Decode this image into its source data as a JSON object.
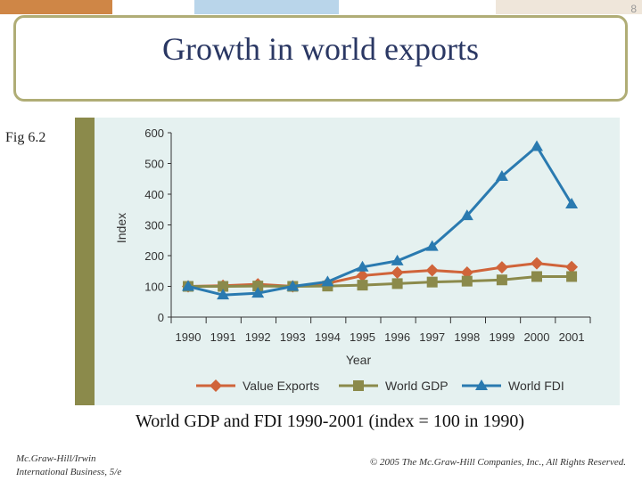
{
  "page_number": "8",
  "title": "Growth in world exports",
  "fig_label": "Fig 6.2",
  "caption": "World GDP and FDI 1990-2001 (index = 100 in 1990)",
  "footer": {
    "publisher": "Mc.Graw-Hill/Irwin",
    "book": "International Business, 5/e",
    "copyright": "© 2005 The Mc.Graw-Hill Companies, Inc., All Rights Reserved."
  },
  "chart_data": {
    "type": "line",
    "title": "",
    "xlabel": "Year",
    "ylabel": "Index",
    "ylim": [
      0,
      600
    ],
    "yticks": [
      0,
      100,
      200,
      300,
      400,
      500,
      600
    ],
    "x": [
      "1990",
      "1991",
      "1992",
      "1993",
      "1994",
      "1995",
      "1996",
      "1997",
      "1998",
      "1999",
      "2000",
      "2001"
    ],
    "legend_position": "bottom",
    "series": [
      {
        "name": "Value Exports",
        "color": "#d0643a",
        "marker": "diamond",
        "values": [
          100,
          102,
          107,
          100,
          110,
          135,
          145,
          152,
          145,
          162,
          175,
          163
        ]
      },
      {
        "name": "World GDP",
        "color": "#8b8a4b",
        "marker": "square",
        "values": [
          100,
          100,
          101,
          100,
          101,
          104,
          109,
          114,
          117,
          121,
          132,
          132
        ]
      },
      {
        "name": "World FDI",
        "color": "#2a7ab0",
        "marker": "triangle",
        "values": [
          100,
          72,
          78,
          100,
          115,
          163,
          183,
          230,
          330,
          458,
          555,
          368
        ]
      }
    ]
  }
}
